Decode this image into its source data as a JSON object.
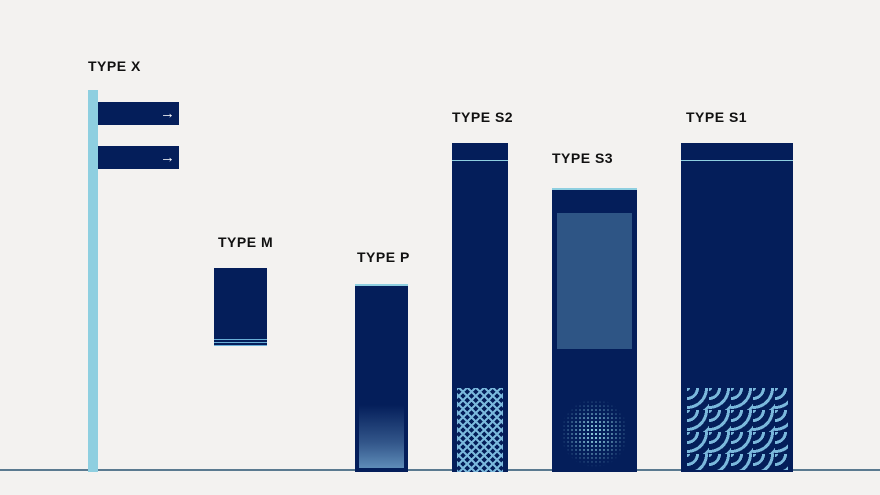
{
  "types": {
    "x": {
      "label": "TYPE X",
      "arrow": "→"
    },
    "m": {
      "label": "TYPE M"
    },
    "p": {
      "label": "TYPE P"
    },
    "s2": {
      "label": "TYPE S2"
    },
    "s3": {
      "label": "TYPE S3"
    },
    "s1": {
      "label": "TYPE S1"
    }
  },
  "colors": {
    "navy": "#041e5a",
    "light_blue": "#8ecfe0",
    "panel": "#2e5585",
    "ground": "#5a7a90",
    "background": "#f3f2f0"
  }
}
